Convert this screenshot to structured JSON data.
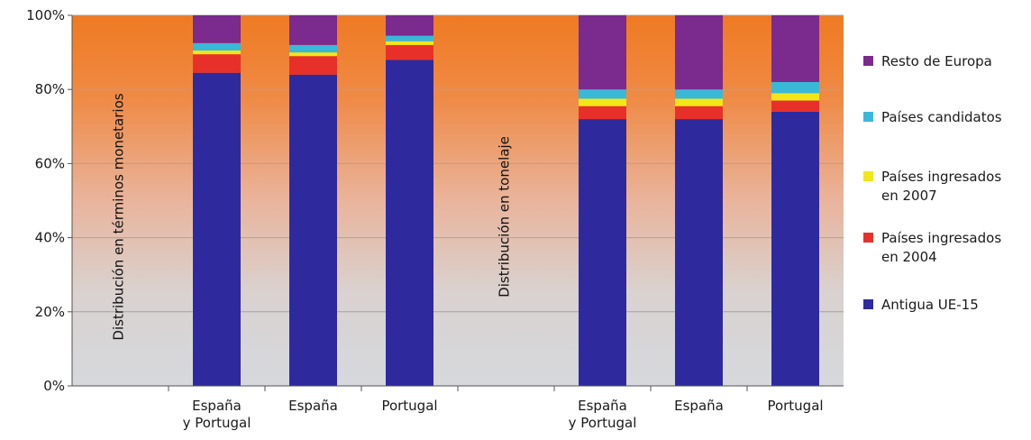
{
  "chart_data": {
    "type": "bar",
    "stacked": true,
    "categories": [
      "España y Portugal",
      "España",
      "Portugal",
      "España y Portugal",
      "España",
      "Portugal"
    ],
    "group_labels": [
      "Distribución en términos monetarios",
      "Distribución en tonelaje"
    ],
    "groups": [
      [
        0,
        1,
        2
      ],
      [
        3,
        4,
        5
      ]
    ],
    "y_ticks": [
      "0%",
      "20%",
      "40%",
      "60%",
      "80%",
      "100%"
    ],
    "ylim": [
      0,
      100
    ],
    "series": [
      {
        "name": "Antigua UE-15",
        "color": "#2e2a9e",
        "values": [
          84.5,
          84,
          88,
          72,
          72,
          74
        ]
      },
      {
        "name": "Países ingresados en 2004",
        "color": "#e8302a",
        "values": [
          5,
          5,
          4,
          3.5,
          3.5,
          3
        ]
      },
      {
        "name": "Países ingresados en 2007",
        "color": "#f2e619",
        "values": [
          1,
          1,
          1,
          2,
          2,
          2
        ]
      },
      {
        "name": "Países candidatos",
        "color": "#3ab8d8",
        "values": [
          2,
          2,
          1.5,
          2.5,
          2.5,
          3
        ]
      },
      {
        "name": "Resto de Europa",
        "color": "#7b2a8e",
        "values": [
          7.5,
          8,
          5.5,
          20,
          20,
          18
        ]
      }
    ],
    "legend_order": [
      4,
      3,
      2,
      1,
      0
    ],
    "legend_labels": [
      [
        "Resto de Europa"
      ],
      [
        "Países candidatos"
      ],
      [
        "Países ingresados",
        "en 2007"
      ],
      [
        "Países ingresados",
        "en 2004"
      ],
      [
        "Antigua UE-15"
      ]
    ],
    "grid": true,
    "legend_position": "right"
  }
}
